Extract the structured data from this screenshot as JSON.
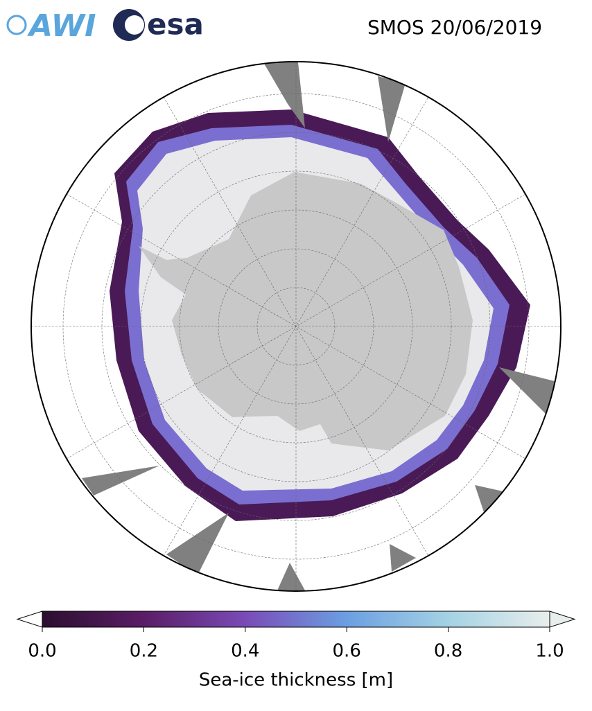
{
  "header": {
    "logos": [
      "AWI",
      "esa"
    ],
    "title": "SMOS 20/06/2019"
  },
  "colorbar": {
    "label": "Sea-ice thickness [m]",
    "lim": [
      0,
      1
    ],
    "ticks": [
      {
        "value": 0,
        "label": "0.0"
      },
      0.2,
      0.4,
      0.6,
      0.8,
      {
        "value": 1,
        "label": "1.0"
      }
    ]
  }
}
